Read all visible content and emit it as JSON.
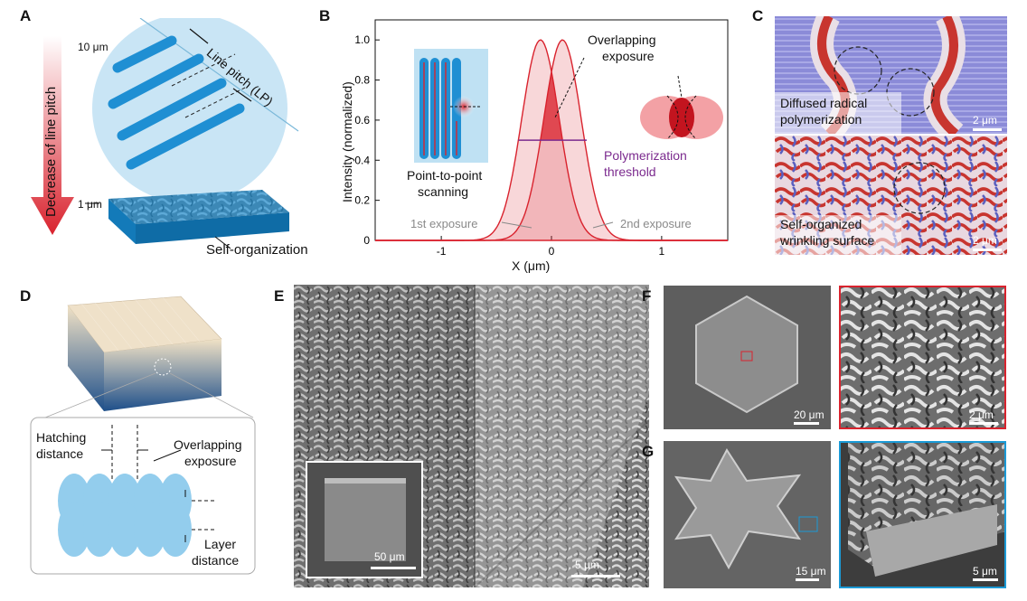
{
  "colors": {
    "accent_red": "#d9232e",
    "accent_blue": "#1b9ad6",
    "threshold_purple": "#7b2a8e",
    "label_gray": "#8a8a8a"
  },
  "panel_a": {
    "letter": "A",
    "label_10um": "10 μm",
    "label_1um": "1 μm",
    "line_pitch": "Line pitch (LP)",
    "arrow_label": "Decrease of line pitch",
    "self_org": "Self-organization"
  },
  "panel_b": {
    "letter": "B",
    "ylabel": "Intensity (normalized)",
    "xlabel": "X (μm)",
    "overlap_label_1": "Overlapping",
    "overlap_label_2": "exposure",
    "threshold_1": "Polymerization",
    "threshold_2": "threshold",
    "scan_1": "Point-to-point",
    "scan_2": "scanning",
    "first_exposure": "1st exposure",
    "second_exposure": "2nd exposure",
    "y_ticks": [
      "0",
      "0.2",
      "0.4",
      "0.6",
      "0.8",
      "1.0"
    ],
    "x_ticks": [
      "-1",
      "0",
      "1"
    ]
  },
  "chart_data": {
    "type": "line",
    "xlabel": "X (μm)",
    "ylabel": "Intensity (normalized)",
    "xlim": [
      -1.6,
      1.6
    ],
    "ylim": [
      0,
      1.1
    ],
    "series": [
      {
        "name": "1st exposure",
        "center": -0.1,
        "peak": 1.0
      },
      {
        "name": "2nd exposure",
        "center": 0.1,
        "peak": 1.0
      }
    ],
    "threshold": 0.5
  },
  "panel_c": {
    "letter": "C",
    "top_label_1": "Diffused radical",
    "top_label_2": "polymerization",
    "bottom_label_1": "Self-organized",
    "bottom_label_2": "wrinkling surface",
    "scale_top": "2 μm",
    "scale_bottom": "2 μm"
  },
  "panel_d": {
    "letter": "D",
    "hatching_1": "Hatching",
    "hatching_2": "distance",
    "overlap_1": "Overlapping",
    "overlap_2": "exposure",
    "layer_1": "Layer",
    "layer_2": "distance"
  },
  "panel_e": {
    "letter": "E",
    "scale_inset": "50 μm",
    "scale_main": "5 μm"
  },
  "panel_f": {
    "letter": "F",
    "scale_left": "20 μm",
    "scale_right": "2 μm"
  },
  "panel_g": {
    "letter": "G",
    "scale_left": "15 μm",
    "scale_right": "5 μm"
  }
}
